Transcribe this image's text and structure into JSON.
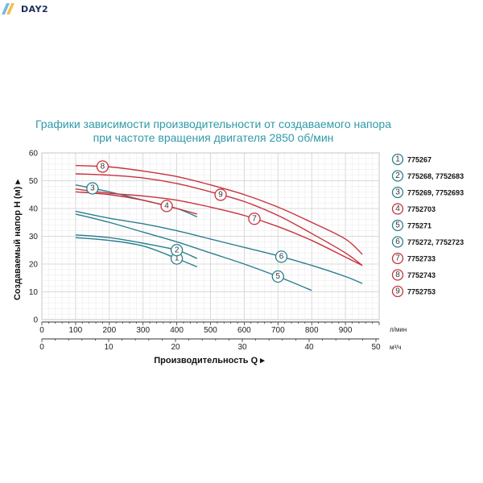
{
  "brand": {
    "name": "DAY2"
  },
  "chart_data": {
    "type": "line",
    "title": "Графики зависимости производительности от создаваемого напора",
    "subtitle": "при частоте вращения двигателя 2850 об/мин",
    "ylabel": "Создаваемый напор H (м) ▸",
    "xlabel": "Производительность Q ▸",
    "ylim": [
      0,
      60
    ],
    "yticks": [
      "0",
      "10",
      "20",
      "30",
      "40",
      "50",
      "60"
    ],
    "x_lpm_lim": [
      0,
      1000
    ],
    "x_lpm_ticks": [
      "100",
      "200",
      "300",
      "400",
      "500",
      "600",
      "700",
      "800",
      "900"
    ],
    "x_lpm_unit": "л/мин",
    "x_m3h_ticks": [
      "0",
      "10",
      "20",
      "30",
      "40",
      "50"
    ],
    "x_m3h_unit": "м³/ч",
    "grid": true,
    "series": [
      {
        "name": "775267",
        "marker": "1",
        "color": "#2a7f8e",
        "x": [
          100,
          200,
          300,
          400,
          460
        ],
        "y": [
          29.5,
          28.5,
          26.5,
          22,
          19
        ],
        "marker_x": 400
      },
      {
        "name": "775268, 7752683",
        "marker": "2",
        "color": "#2a7f8e",
        "x": [
          100,
          200,
          300,
          400,
          460
        ],
        "y": [
          30.5,
          29.5,
          27.5,
          25,
          22
        ],
        "marker_x": 400
      },
      {
        "name": "775269, 7752693",
        "marker": "3",
        "color": "#2a7f8e",
        "x": [
          100,
          200,
          300,
          400,
          460
        ],
        "y": [
          48.5,
          46,
          43,
          40,
          37
        ],
        "marker_x": 150
      },
      {
        "name": "7752703",
        "marker": "4",
        "color": "#c8323c",
        "x": [
          100,
          200,
          300,
          400,
          460
        ],
        "y": [
          46,
          45,
          43,
          40,
          38
        ],
        "marker_x": 370
      },
      {
        "name": "775271",
        "marker": "5",
        "color": "#2a7f8e",
        "x": [
          100,
          200,
          300,
          400,
          500,
          600,
          700,
          800
        ],
        "y": [
          38,
          35,
          31.5,
          28,
          24,
          20,
          15.5,
          10.5
        ],
        "marker_x": 700
      },
      {
        "name": "775272, 7752723",
        "marker": "6",
        "color": "#2a7f8e",
        "x": [
          100,
          200,
          300,
          400,
          500,
          600,
          700,
          800,
          900,
          950
        ],
        "y": [
          39,
          36.5,
          34.5,
          32,
          29,
          26,
          23,
          19.5,
          15.5,
          13
        ],
        "marker_x": 710
      },
      {
        "name": "7752733",
        "marker": "7",
        "color": "#c8323c",
        "x": [
          100,
          200,
          300,
          400,
          500,
          600,
          700,
          800,
          900,
          950
        ],
        "y": [
          47,
          45.5,
          44.5,
          43,
          40.5,
          37.5,
          33.5,
          28.5,
          22.5,
          19.5
        ],
        "marker_x": 630
      },
      {
        "name": "7752743",
        "marker": "8",
        "color": "#c8323c",
        "x": [
          100,
          200,
          300,
          400,
          500,
          600,
          700,
          800,
          900,
          950
        ],
        "y": [
          55.5,
          55,
          53.5,
          51.5,
          48.5,
          45,
          40.5,
          35,
          29,
          23.5
        ],
        "marker_x": 180
      },
      {
        "name": "7752753",
        "marker": "9",
        "color": "#c8323c",
        "x": [
          100,
          200,
          300,
          400,
          500,
          600,
          700,
          800,
          900,
          950
        ],
        "y": [
          52.5,
          52,
          51,
          49,
          46,
          42.5,
          37.5,
          31,
          24,
          19.5
        ],
        "marker_x": 530
      }
    ]
  }
}
